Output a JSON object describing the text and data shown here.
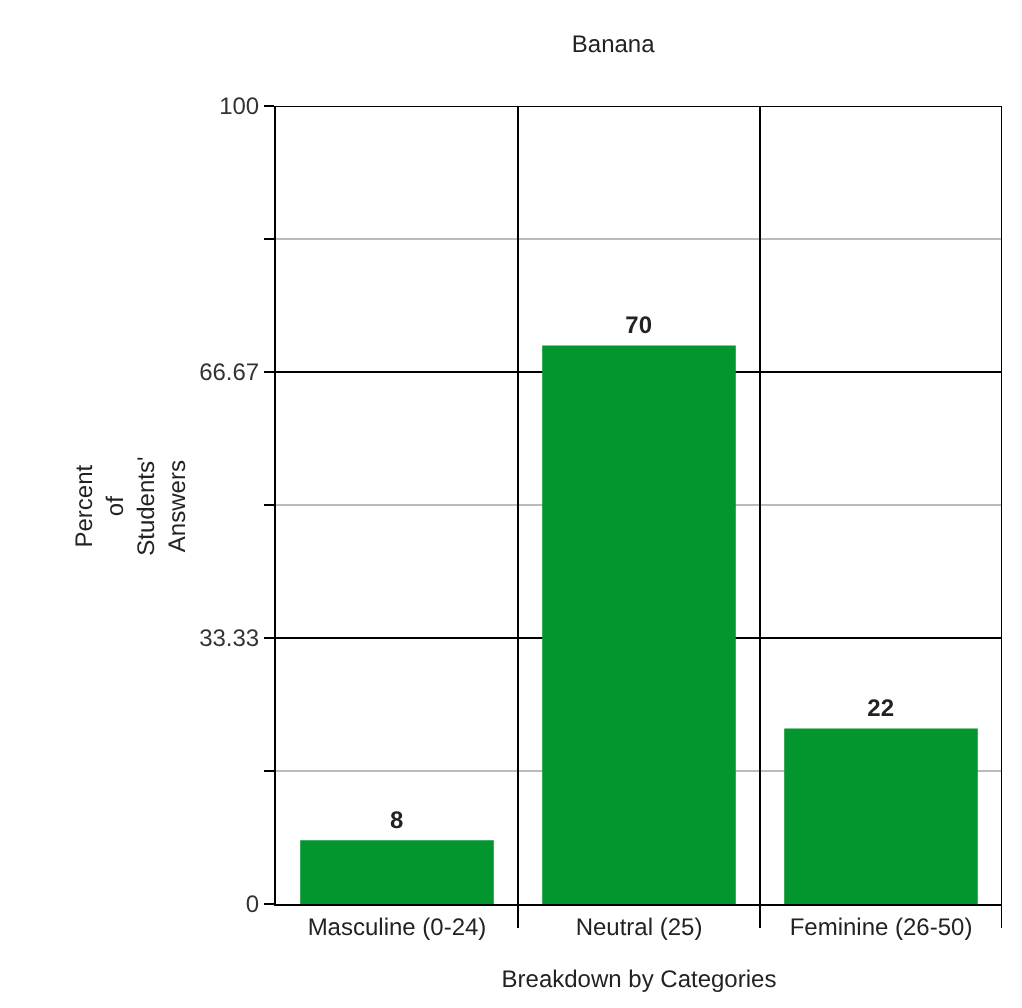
{
  "chart_data": {
    "type": "bar",
    "title": "Banana",
    "xlabel": "Breakdown by Categories",
    "ylabel": "Percent\nof\nStudents'\nAnswers",
    "categories": [
      "Masculine (0-24)",
      "Neutral (25)",
      "Feminine (26-50)"
    ],
    "values": [
      8,
      70,
      22
    ],
    "color": "#03962f",
    "ylim": [
      0,
      100
    ],
    "yticks": [
      0,
      {
        "value": 16.67,
        "label": null
      },
      33.33,
      {
        "value": 50,
        "label": null
      },
      66.67,
      {
        "value": 83.33,
        "label": null
      },
      100
    ],
    "grid": true,
    "data_labels": true
  }
}
